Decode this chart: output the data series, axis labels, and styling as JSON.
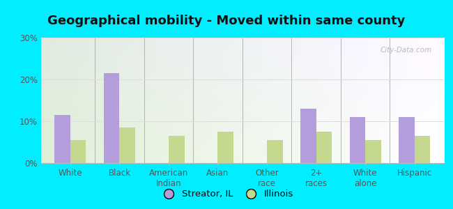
{
  "title": "Geographical mobility - Moved within same county",
  "categories": [
    "White",
    "Black",
    "American\nIndian",
    "Asian",
    "Other\nrace",
    "2+\nraces",
    "White\nalone",
    "Hispanic"
  ],
  "streator_values": [
    11.5,
    21.5,
    0,
    0,
    0,
    13.0,
    11.0,
    11.0
  ],
  "illinois_values": [
    5.5,
    8.5,
    6.5,
    7.5,
    5.5,
    7.5,
    5.5,
    6.5
  ],
  "bar_color_streator": "#b39ddb",
  "bar_color_illinois": "#c5d890",
  "background_outer": "#00eeff",
  "ylim": [
    0,
    30
  ],
  "yticks": [
    0,
    10,
    20,
    30
  ],
  "ytick_labels": [
    "0%",
    "10%",
    "20%",
    "30%"
  ],
  "legend_label_streator": "Streator, IL",
  "legend_label_illinois": "Illinois",
  "watermark": "City-Data.com",
  "title_fontsize": 13,
  "tick_fontsize": 8.5,
  "legend_fontsize": 9.5
}
